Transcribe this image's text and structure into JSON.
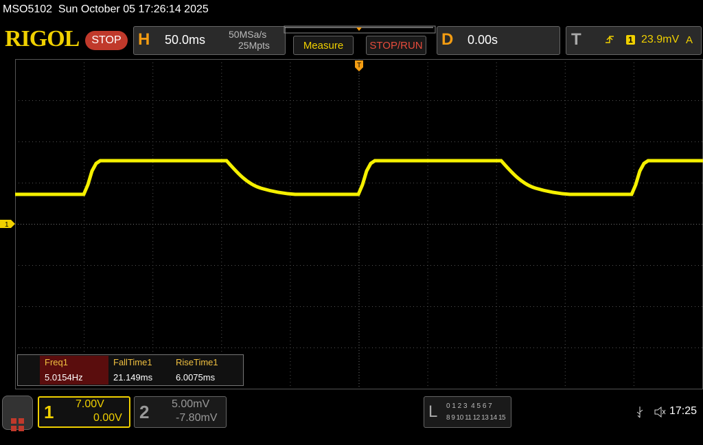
{
  "status_bar": {
    "title": "MSO5102  Sun October 05 17:26:14 2025"
  },
  "toolbar": {
    "logo": "RIGOL",
    "run_state": "STOP",
    "horizontal": {
      "label": "H",
      "timebase": "50.0ms",
      "sample_rate": "50MSa/s",
      "memory_depth": "25Mpts"
    },
    "measure_button": "Measure",
    "stop_run_button": "STOP/RUN",
    "delay": {
      "label": "D",
      "value": "0.00s"
    },
    "trigger": {
      "label": "T",
      "source": "1",
      "level": "23.9mV",
      "mode": "A"
    }
  },
  "screen": {
    "trigger_marker": "T",
    "channel_marker": "1"
  },
  "measurements": {
    "headers": [
      "Freq1",
      "FallTime1",
      "RiseTime1"
    ],
    "values": [
      "5.0154Hz",
      "21.149ms",
      "6.0075ms"
    ]
  },
  "bottom_bar": {
    "channels": [
      {
        "number": "1",
        "scale": "7.00V",
        "offset": "0.00V"
      },
      {
        "number": "2",
        "scale": "5.00mV",
        "offset": "-7.80mV"
      }
    ],
    "logic": {
      "label": "L",
      "row1": "0 1 2 3  4 5 6 7",
      "row2": "8 9 10 11 12 13 14 15"
    },
    "clock": "17:25"
  }
}
